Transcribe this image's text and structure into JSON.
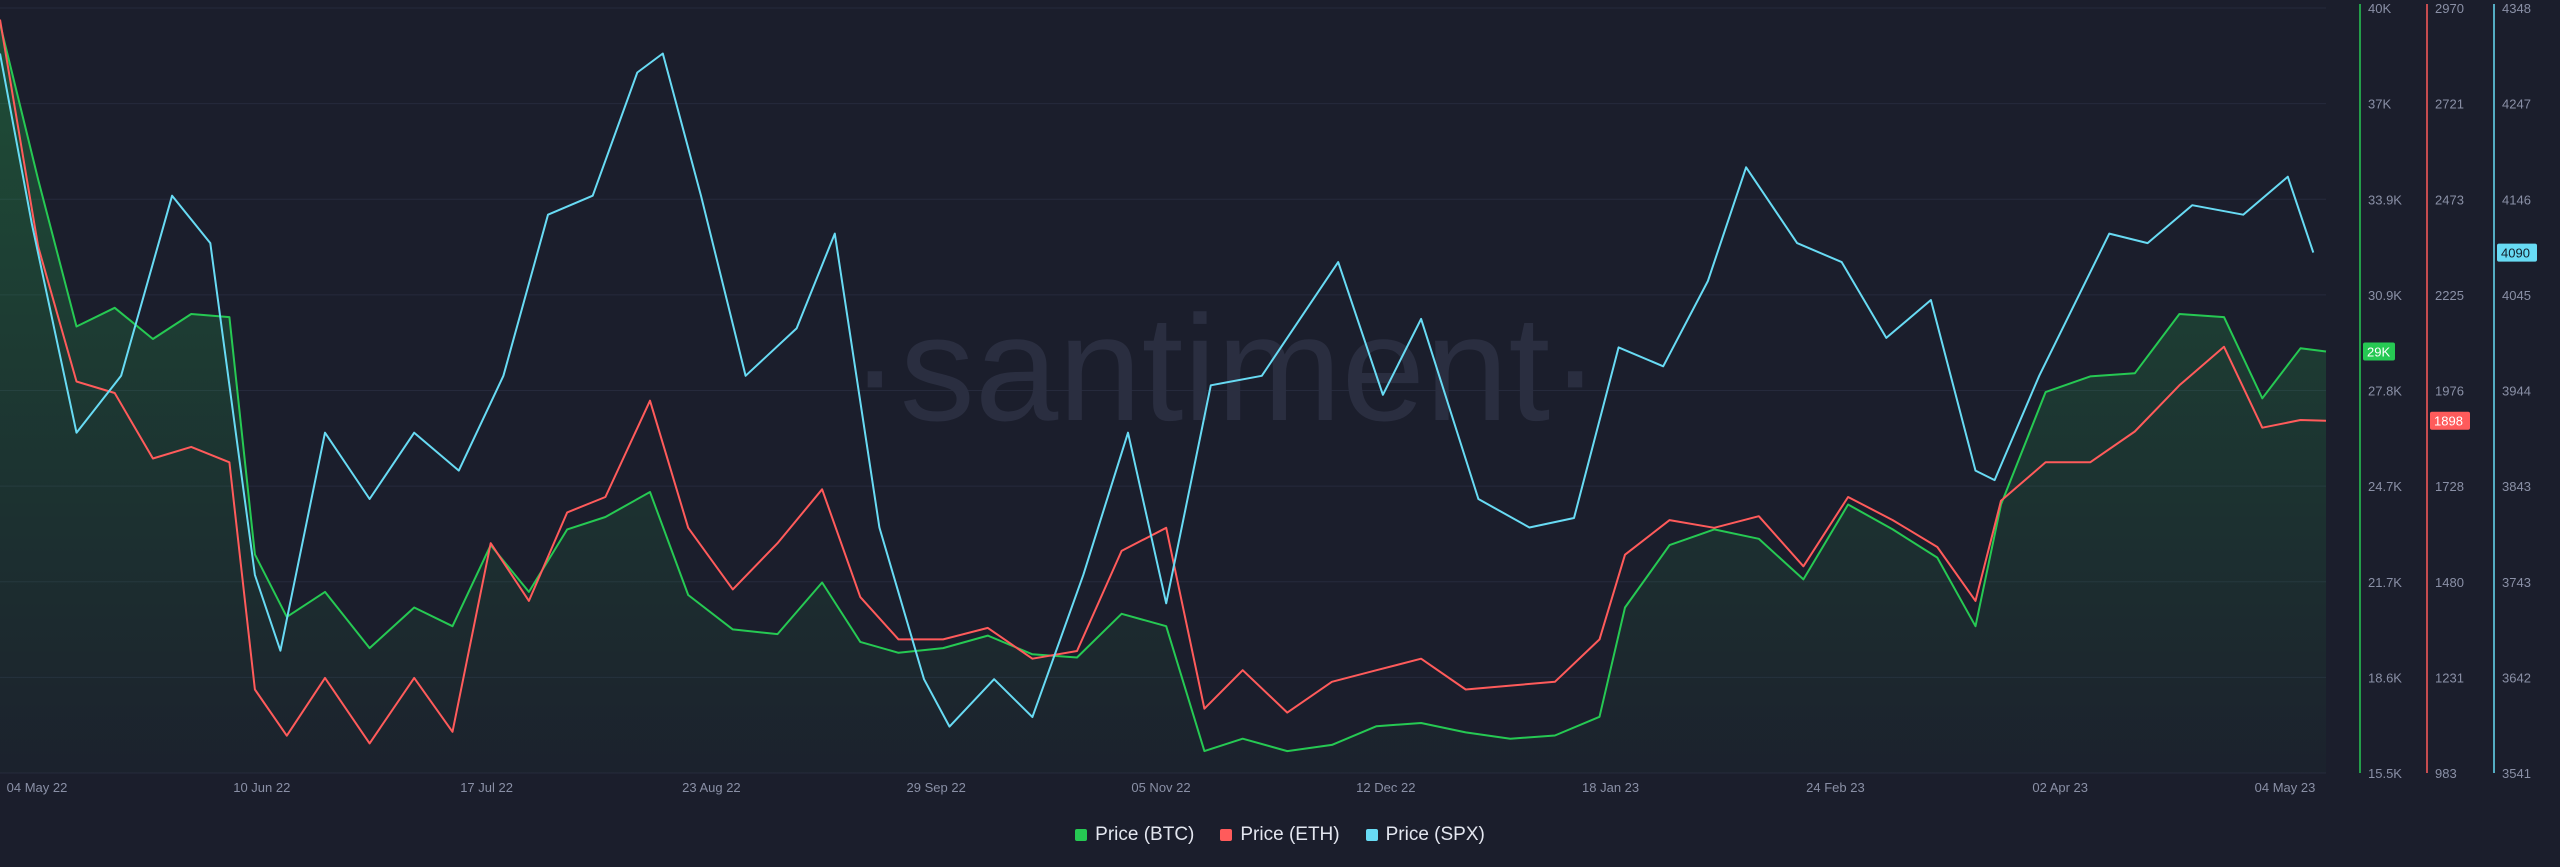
{
  "watermark": "·santiment·",
  "colors": {
    "background": "#1b1e2c",
    "btc": "#26c953",
    "eth": "#ff5b5b",
    "spx": "#68dbf4",
    "grid": "#262a3c",
    "axis_text": "#8a90a6",
    "watermark": "#2a2e40"
  },
  "legend": [
    {
      "label": "Price (BTC)",
      "color": "#26c953"
    },
    {
      "label": "Price (ETH)",
      "color": "#ff5b5b"
    },
    {
      "label": "Price (SPX)",
      "color": "#68dbf4"
    }
  ],
  "chart_data": {
    "type": "line",
    "x_ticks": [
      "04 May 22",
      "10 Jun 22",
      "17 Jul 22",
      "23 Aug 22",
      "29 Sep 22",
      "05 Nov 22",
      "12 Dec 22",
      "18 Jan 23",
      "24 Feb 23",
      "02 Apr 23",
      "04 May 23"
    ],
    "x_range": [
      "2022-05-04",
      "2023-05-04"
    ],
    "grid": true,
    "legend_position": "bottom-center",
    "axes": [
      {
        "series": "Price (BTC)",
        "color": "#26c953",
        "ylim": [
          15500,
          40000
        ],
        "ticks": [
          "40K",
          "37K",
          "33.9K",
          "30.9K",
          "27.8K",
          "24.7K",
          "21.7K",
          "18.6K",
          "15.5K"
        ],
        "last_value_label": "29K",
        "area_fill": true
      },
      {
        "series": "Price (ETH)",
        "color": "#ff5b5b",
        "ylim": [
          983,
          2970
        ],
        "ticks": [
          "2970",
          "2721",
          "2473",
          "2225",
          "1976",
          "1728",
          "1480",
          "1231",
          "983"
        ],
        "last_value_label": "1898"
      },
      {
        "series": "Price (SPX)",
        "color": "#68dbf4",
        "ylim": [
          3541,
          4348
        ],
        "ticks": [
          "4348",
          "4247",
          "4146",
          "4045",
          "3944",
          "3843",
          "3743",
          "3642",
          "3541"
        ],
        "last_value_label": "4090"
      }
    ],
    "series": [
      {
        "name": "Price (BTC)",
        "x": [
          "2022-05-04",
          "2022-05-10",
          "2022-05-16",
          "2022-05-22",
          "2022-05-28",
          "2022-06-03",
          "2022-06-09",
          "2022-06-13",
          "2022-06-18",
          "2022-06-24",
          "2022-07-01",
          "2022-07-08",
          "2022-07-14",
          "2022-07-20",
          "2022-07-26",
          "2022-08-01",
          "2022-08-07",
          "2022-08-14",
          "2022-08-20",
          "2022-08-27",
          "2022-09-03",
          "2022-09-10",
          "2022-09-16",
          "2022-09-22",
          "2022-09-29",
          "2022-10-06",
          "2022-10-13",
          "2022-10-20",
          "2022-10-27",
          "2022-11-03",
          "2022-11-09",
          "2022-11-15",
          "2022-11-22",
          "2022-11-29",
          "2022-12-06",
          "2022-12-13",
          "2022-12-20",
          "2022-12-27",
          "2023-01-03",
          "2023-01-10",
          "2023-01-14",
          "2023-01-21",
          "2023-01-28",
          "2023-02-04",
          "2023-02-11",
          "2023-02-18",
          "2023-02-25",
          "2023-03-04",
          "2023-03-10",
          "2023-03-14",
          "2023-03-21",
          "2023-03-28",
          "2023-04-04",
          "2023-04-11",
          "2023-04-18",
          "2023-04-24",
          "2023-04-30",
          "2023-05-04"
        ],
        "values": [
          39500,
          34500,
          29800,
          30400,
          29400,
          30200,
          30100,
          22500,
          20500,
          21300,
          19500,
          20800,
          20200,
          22800,
          21300,
          23300,
          23700,
          24500,
          21200,
          20100,
          19950,
          21600,
          19700,
          19350,
          19500,
          19900,
          19300,
          19200,
          20600,
          20200,
          16200,
          16600,
          16200,
          16400,
          17000,
          17100,
          16800,
          16600,
          16700,
          17300,
          20800,
          22800,
          23300,
          23000,
          21700,
          24100,
          23300,
          22400,
          20200,
          24100,
          27700,
          28200,
          28300,
          30200,
          30100,
          27500,
          29100,
          29000
        ]
      },
      {
        "name": "Price (ETH)",
        "x": [
          "2022-05-04",
          "2022-05-10",
          "2022-05-16",
          "2022-05-22",
          "2022-05-28",
          "2022-06-03",
          "2022-06-09",
          "2022-06-13",
          "2022-06-18",
          "2022-06-24",
          "2022-07-01",
          "2022-07-08",
          "2022-07-14",
          "2022-07-20",
          "2022-07-26",
          "2022-08-01",
          "2022-08-07",
          "2022-08-14",
          "2022-08-20",
          "2022-08-27",
          "2022-09-03",
          "2022-09-10",
          "2022-09-16",
          "2022-09-22",
          "2022-09-29",
          "2022-10-06",
          "2022-10-13",
          "2022-10-20",
          "2022-10-27",
          "2022-11-03",
          "2022-11-09",
          "2022-11-15",
          "2022-11-22",
          "2022-11-29",
          "2022-12-06",
          "2022-12-13",
          "2022-12-20",
          "2022-12-27",
          "2023-01-03",
          "2023-01-10",
          "2023-01-14",
          "2023-01-21",
          "2023-01-28",
          "2023-02-04",
          "2023-02-11",
          "2023-02-18",
          "2023-02-25",
          "2023-03-04",
          "2023-03-10",
          "2023-03-14",
          "2023-03-21",
          "2023-03-28",
          "2023-04-04",
          "2023-04-11",
          "2023-04-18",
          "2023-04-24",
          "2023-04-30",
          "2023-05-04"
        ],
        "values": [
          2940,
          2350,
          2000,
          1970,
          1800,
          1830,
          1790,
          1200,
          1080,
          1230,
          1060,
          1230,
          1090,
          1580,
          1430,
          1660,
          1700,
          1950,
          1620,
          1460,
          1580,
          1720,
          1440,
          1330,
          1330,
          1360,
          1280,
          1300,
          1560,
          1620,
          1150,
          1250,
          1140,
          1220,
          1250,
          1280,
          1200,
          1210,
          1220,
          1330,
          1550,
          1640,
          1620,
          1650,
          1520,
          1700,
          1640,
          1570,
          1430,
          1690,
          1790,
          1790,
          1870,
          1990,
          2090,
          1880,
          1900,
          1898
        ]
      },
      {
        "name": "Price (SPX)",
        "x": [
          "2022-05-04",
          "2022-05-09",
          "2022-05-16",
          "2022-05-23",
          "2022-05-31",
          "2022-06-06",
          "2022-06-13",
          "2022-06-17",
          "2022-06-24",
          "2022-07-01",
          "2022-07-08",
          "2022-07-15",
          "2022-07-22",
          "2022-07-29",
          "2022-08-05",
          "2022-08-12",
          "2022-08-16",
          "2022-08-22",
          "2022-08-29",
          "2022-09-06",
          "2022-09-12",
          "2022-09-19",
          "2022-09-26",
          "2022-09-30",
          "2022-10-07",
          "2022-10-13",
          "2022-10-21",
          "2022-10-28",
          "2022-11-03",
          "2022-11-10",
          "2022-11-18",
          "2022-11-30",
          "2022-12-07",
          "2022-12-13",
          "2022-12-22",
          "2022-12-30",
          "2023-01-06",
          "2023-01-13",
          "2023-01-20",
          "2023-01-27",
          "2023-02-02",
          "2023-02-10",
          "2023-02-17",
          "2023-02-24",
          "2023-03-03",
          "2023-03-10",
          "2023-03-13",
          "2023-03-20",
          "2023-03-31",
          "2023-04-06",
          "2023-04-13",
          "2023-04-21",
          "2023-04-28",
          "2023-05-02"
        ],
        "values": [
          4300,
          4120,
          3900,
          3960,
          4150,
          4100,
          3750,
          3670,
          3900,
          3830,
          3900,
          3860,
          3960,
          4130,
          4150,
          4280,
          4300,
          4150,
          3960,
          4010,
          4110,
          3800,
          3640,
          3590,
          3640,
          3600,
          3750,
          3900,
          3720,
          3950,
          3960,
          4080,
          3940,
          4020,
          3830,
          3800,
          3810,
          3990,
          3970,
          4060,
          4180,
          4100,
          4080,
          4000,
          4040,
          3860,
          3850,
          3960,
          4110,
          4100,
          4140,
          4130,
          4170,
          4090
        ]
      }
    ]
  }
}
